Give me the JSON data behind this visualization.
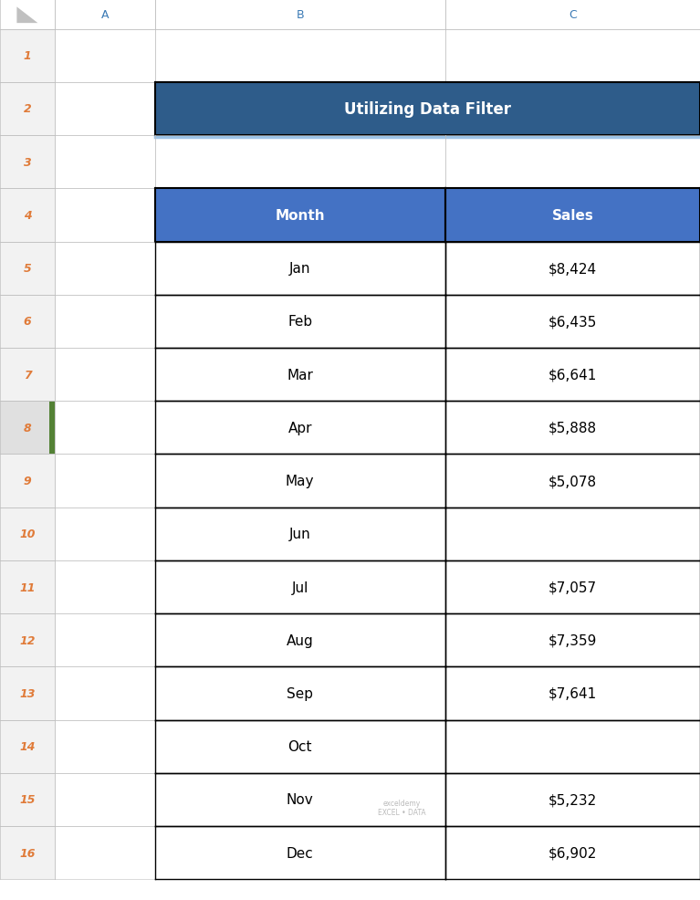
{
  "title": "Utilizing Data Filter",
  "title_bg_color": "#2E5C8A",
  "title_text_color": "#FFFFFF",
  "title_underline_color": "#9DC3E6",
  "header_bg_color": "#4472C4",
  "header_text_color": "#FFFFFF",
  "cell_bg_color": "#FFFFFF",
  "cell_text_color": "#000000",
  "border_color": "#000000",
  "col_headers": [
    "Month",
    "Sales"
  ],
  "rows": [
    [
      "Jan",
      "$8,424"
    ],
    [
      "Feb",
      "$6,435"
    ],
    [
      "Mar",
      "$6,641"
    ],
    [
      "Apr",
      "$5,888"
    ],
    [
      "May",
      "$5,078"
    ],
    [
      "Jun",
      ""
    ],
    [
      "Jul",
      "$7,057"
    ],
    [
      "Aug",
      "$7,359"
    ],
    [
      "Sep",
      "$7,641"
    ],
    [
      "Oct",
      ""
    ],
    [
      "Nov",
      "$5,232"
    ],
    [
      "Dec",
      "$6,902"
    ]
  ],
  "spreadsheet_bg": "#FFFFFF",
  "row_num_bg": "#F2F2F2",
  "row_num_text_color": "#E07B39",
  "col_letter_bg": "#FFFFFF",
  "col_letter_text_color": "#3B7AB5",
  "grid_border_color": "#D0D0D0",
  "highlighted_excel_row": 8,
  "highlighted_row_num_bg": "#E0E0E0",
  "highlighted_green_tab_color": "#538135",
  "watermark_text": "exceldemy\nEXCEL • DATA",
  "watermark_color": "#AAAAAA",
  "thin_border": "#C0C0C0",
  "table_border": "#000000"
}
